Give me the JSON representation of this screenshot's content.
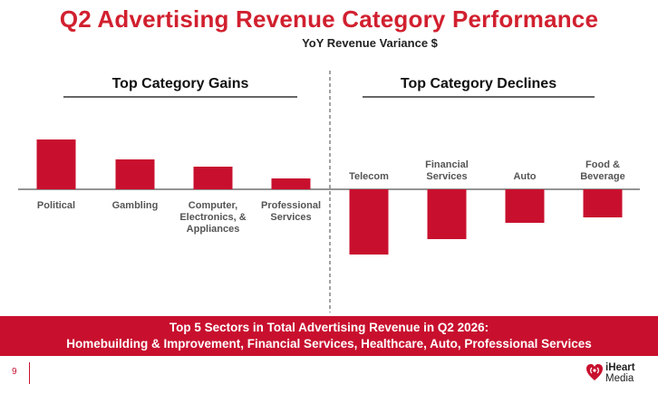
{
  "title": "Q2 Advertising Revenue Category Performance",
  "subtitle": "YoY Revenue Variance $",
  "sections": {
    "gains": "Top Category Gains",
    "declines": "Top Category Declines"
  },
  "chart_data": {
    "type": "bar",
    "categories": [
      "Political",
      "Gambling",
      "Computer, Electronics, & Appliances",
      "Professional Services",
      "Telecom",
      "Financial Services",
      "Auto",
      "Food & Beverage"
    ],
    "category_lines": [
      [
        "Political"
      ],
      [
        "Gambling"
      ],
      [
        "Computer,",
        "Electronics, &",
        "Appliances"
      ],
      [
        "Professional",
        "Services"
      ],
      [
        "Telecom"
      ],
      [
        "Financial",
        "Services"
      ],
      [
        "Auto"
      ],
      [
        "Food &",
        "Beverage"
      ]
    ],
    "values": [
      55,
      33,
      25,
      12,
      -72,
      -55,
      -37,
      -31
    ],
    "ylim": [
      -80,
      65
    ],
    "bar_color": "#c8102e",
    "grid": false,
    "note": ""
  },
  "banner": {
    "line1": "Top 5 Sectors in Total Advertising Revenue in Q2 2026:",
    "line2": "Homebuilding & Improvement, Financial Services, Healthcare, Auto, Professional Services"
  },
  "page_number": "9",
  "logo": {
    "line1": "iHeart",
    "line2": "Media",
    "icon": "iheart-logo-icon"
  }
}
